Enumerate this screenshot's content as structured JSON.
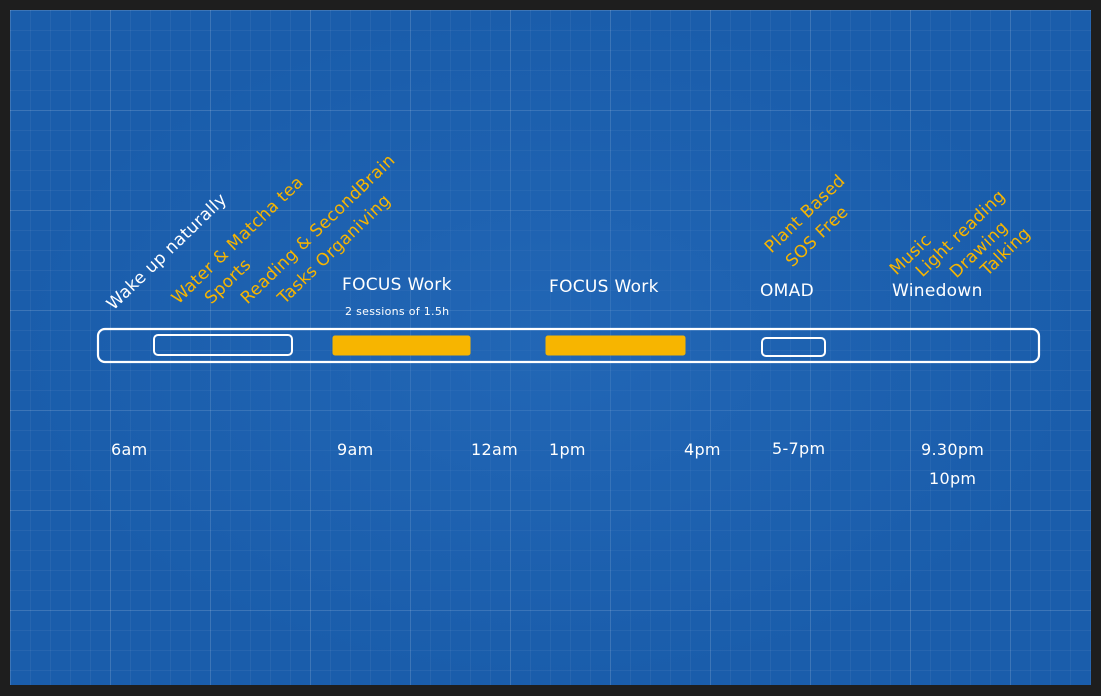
{
  "colors": {
    "board": "#1a5dab",
    "accent": "#f7b500",
    "ink": "#ffffff"
  },
  "morning_items": {
    "wake": "Wake up naturally",
    "water": "Water & Matcha tea",
    "sports": "Sports",
    "reading": "Reading & SecondBrain",
    "tasks": "Tasks Organiving"
  },
  "focus1": {
    "title": "FOCUS Work",
    "note": "2 sessions of 1.5h"
  },
  "focus2": {
    "title": "FOCUS Work"
  },
  "omad": {
    "line1": "Plant Based",
    "line2": "SOS Free",
    "title": "OMAD"
  },
  "winedown": {
    "items": [
      "Music",
      "Light reading",
      "Drawing",
      "Talking"
    ],
    "title": "Winedown"
  },
  "times": {
    "t6am": "6am",
    "t9am": "9am",
    "t12am": "12am",
    "t1pm": "1pm",
    "t4pm": "4pm",
    "t57pm": "5-7pm",
    "t930pm": "9.30pm",
    "t10pm": "10pm"
  }
}
